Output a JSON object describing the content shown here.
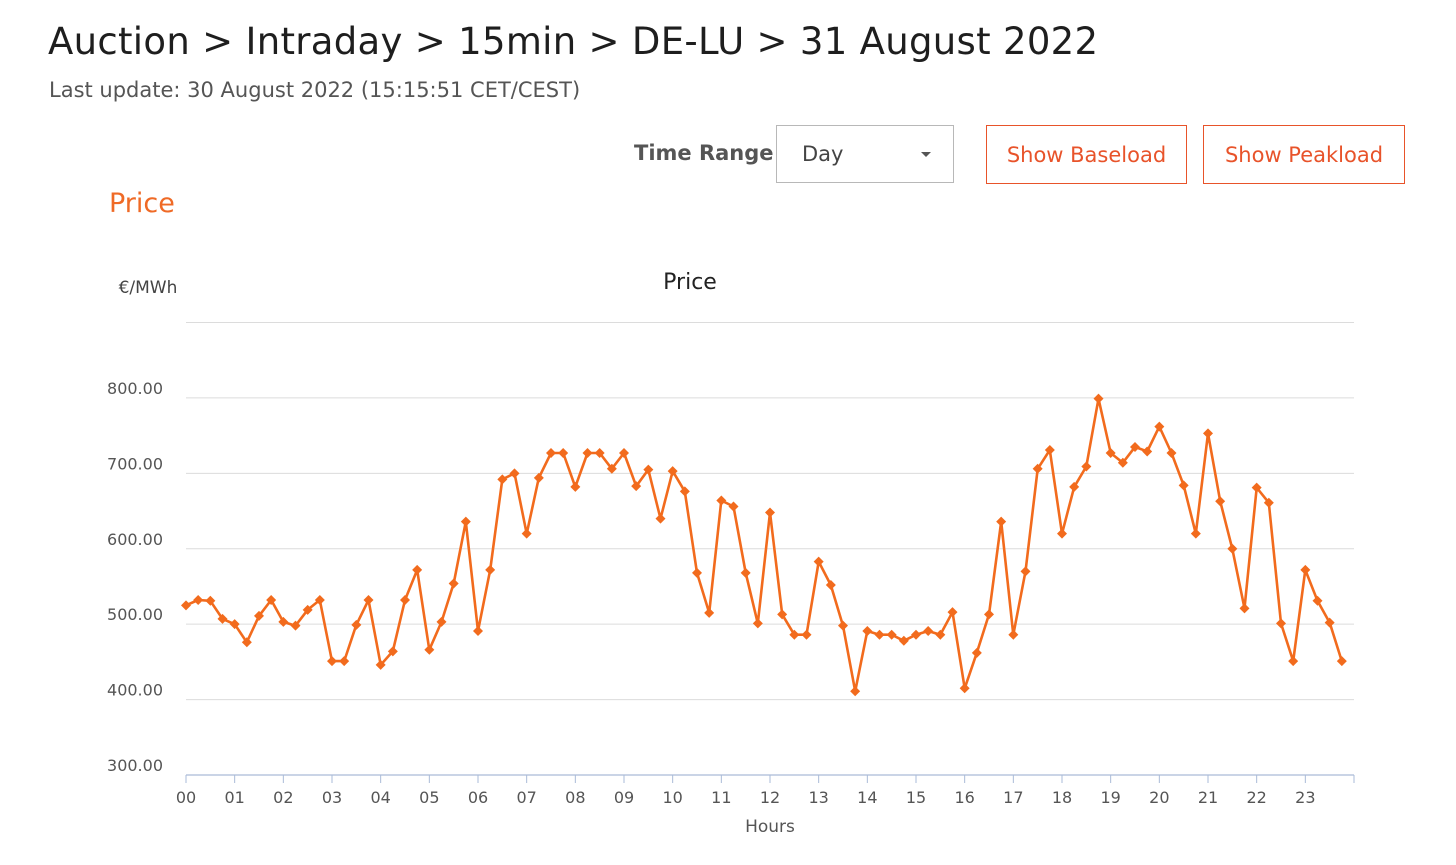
{
  "header": {
    "breadcrumb": "Auction > Intraday > 15min > DE-LU > 31 August 2022",
    "last_update": "Last update: 30 August 2022 (15:15:51 CET/CEST)"
  },
  "controls": {
    "time_range_label": "Time Range",
    "time_range_value": "Day",
    "show_baseload": "Show Baseload",
    "show_peakload": "Show Peakload"
  },
  "section_title": "Price",
  "colors": {
    "accent": "#ef6a26",
    "series": "#f26b1d"
  },
  "chart_data": {
    "type": "line",
    "title": "Price",
    "ylabel": "€/MWh",
    "xlabel": "Hours",
    "ylim": [
      300,
      900
    ],
    "y_ticks": [
      {
        "value": 300,
        "label": "300.00"
      },
      {
        "value": 400,
        "label": "400.00"
      },
      {
        "value": 500,
        "label": "500.00"
      },
      {
        "value": 600,
        "label": "600.00"
      },
      {
        "value": 700,
        "label": "700.00"
      },
      {
        "value": 800,
        "label": "800.00"
      }
    ],
    "x_ticks": [
      "00",
      "01",
      "02",
      "03",
      "04",
      "05",
      "06",
      "07",
      "08",
      "09",
      "10",
      "11",
      "12",
      "13",
      "14",
      "15",
      "16",
      "17",
      "18",
      "19",
      "20",
      "21",
      "22",
      "23"
    ],
    "grid": true,
    "series": [
      {
        "marker": "diamond",
        "values": [
          525,
          532,
          531,
          507,
          500,
          476,
          511,
          532,
          503,
          498,
          519,
          532,
          451,
          451,
          499,
          532,
          446,
          464,
          532,
          572,
          466,
          503,
          554,
          636,
          491,
          572,
          692,
          700,
          620,
          694,
          727,
          727,
          682,
          727,
          727,
          706,
          727,
          683,
          705,
          640,
          703,
          676,
          568,
          515,
          664,
          656,
          568,
          501,
          648,
          513,
          486,
          486,
          583,
          552,
          498,
          411,
          491,
          486,
          486,
          478,
          486,
          491,
          486,
          516,
          415,
          462,
          513,
          636,
          486,
          570,
          706,
          731,
          620,
          682,
          709,
          799,
          727,
          714,
          735,
          729,
          762,
          727,
          684,
          620,
          753,
          663,
          600,
          521,
          681,
          661,
          501,
          451,
          572,
          531,
          502,
          451
        ]
      }
    ]
  }
}
